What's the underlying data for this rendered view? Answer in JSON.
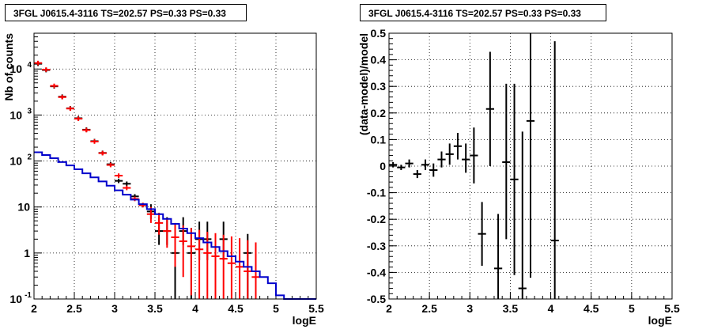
{
  "chart_data": [
    {
      "type": "line",
      "title": "3FGL J0615.4-3116 TS=202.57 PS=0.33 PS=0.33",
      "xlabel": "logE",
      "ylabel": "Nb of counts",
      "xlim": [
        2,
        5.5
      ],
      "ylim": [
        0.1,
        60000
      ],
      "yscale": "log",
      "grid": true,
      "xticks": [
        "2",
        "2.5",
        "3",
        "3.5",
        "4",
        "4.5",
        "5",
        "5.5"
      ],
      "yticks": [
        {
          "value": 0.1,
          "label": "10",
          "exp": "-1"
        },
        {
          "value": 1,
          "label": "1",
          "exp": ""
        },
        {
          "value": 10,
          "label": "10",
          "exp": ""
        },
        {
          "value": 100,
          "label": "10",
          "exp": "2"
        },
        {
          "value": 1000,
          "label": "10",
          "exp": "3"
        },
        {
          "value": 10000,
          "label": "10",
          "exp": "4"
        }
      ],
      "series": [
        {
          "color": "#000000",
          "style": "errorbar",
          "points": [
            {
              "x": 2.05,
              "y": 13000
            },
            {
              "x": 2.15,
              "y": 9500
            },
            {
              "x": 2.25,
              "y": 4200
            },
            {
              "x": 2.35,
              "y": 2500
            },
            {
              "x": 2.45,
              "y": 1400
            },
            {
              "x": 2.55,
              "y": 850
            },
            {
              "x": 2.65,
              "y": 480
            },
            {
              "x": 2.75,
              "y": 270
            },
            {
              "x": 2.85,
              "y": 150
            },
            {
              "x": 2.95,
              "y": 85
            },
            {
              "x": 3.05,
              "y": 37
            },
            {
              "x": 3.15,
              "y": 32
            },
            {
              "x": 3.25,
              "y": 17
            },
            {
              "x": 3.35,
              "y": 11
            },
            {
              "x": 3.45,
              "y": 8,
              "lo": 5.5,
              "hi": 11.5
            },
            {
              "x": 3.55,
              "y": 3,
              "lo": 1.5,
              "hi": 6
            },
            {
              "x": 3.65,
              "y": 3,
              "lo": 1.5,
              "hi": 6
            },
            {
              "x": 3.75,
              "y": 1,
              "lo": 0.1,
              "hi": 3.5
            },
            {
              "x": 3.85,
              "y": 3,
              "lo": 1.5,
              "hi": 6
            },
            {
              "x": 3.95,
              "y": 1,
              "lo": 0.1,
              "hi": 3.5
            },
            {
              "x": 4.05,
              "y": 2,
              "lo": 0.7,
              "hi": 4.8
            },
            {
              "x": 4.15,
              "y": 2,
              "lo": 0.7,
              "hi": 4.8
            },
            {
              "x": 4.35,
              "y": 2,
              "lo": 0.7,
              "hi": 4.8
            },
            {
              "x": 4.65,
              "y": 1,
              "lo": 0.1,
              "hi": 2.6
            }
          ]
        },
        {
          "color": "#ff0000",
          "style": "errorbar",
          "points": [
            {
              "x": 2.05,
              "y": 13500
            },
            {
              "x": 2.15,
              "y": 9700
            },
            {
              "x": 2.25,
              "y": 4300
            },
            {
              "x": 2.35,
              "y": 2450
            },
            {
              "x": 2.45,
              "y": 1380
            },
            {
              "x": 2.55,
              "y": 830
            },
            {
              "x": 2.65,
              "y": 470
            },
            {
              "x": 2.75,
              "y": 265
            },
            {
              "x": 2.85,
              "y": 148
            },
            {
              "x": 2.95,
              "y": 82
            },
            {
              "x": 3.05,
              "y": 48
            },
            {
              "x": 3.15,
              "y": 26
            },
            {
              "x": 3.25,
              "y": 15
            },
            {
              "x": 3.35,
              "y": 11
            },
            {
              "x": 3.45,
              "y": 7,
              "lo": 4.5,
              "hi": 10
            },
            {
              "x": 3.55,
              "y": 4.5,
              "lo": 2.5,
              "hi": 7.5
            },
            {
              "x": 3.65,
              "y": 3,
              "lo": 1.3,
              "hi": 5.5
            },
            {
              "x": 3.75,
              "y": 2.2,
              "lo": 0.5,
              "hi": 4.5
            },
            {
              "x": 3.85,
              "y": 1.8,
              "lo": 0.3,
              "hi": 4
            },
            {
              "x": 3.95,
              "y": 1.4,
              "lo": 0.12,
              "hi": 3.5
            },
            {
              "x": 4.05,
              "y": 1.2,
              "lo": 0.1,
              "hi": 3.2
            },
            {
              "x": 4.15,
              "y": 1,
              "lo": 0.1,
              "hi": 2.9
            },
            {
              "x": 4.25,
              "y": 0.85,
              "lo": 0.1,
              "hi": 2.7
            },
            {
              "x": 4.35,
              "y": 0.75,
              "lo": 0.1,
              "hi": 2.5
            },
            {
              "x": 4.45,
              "y": 0.6,
              "lo": 0.1,
              "hi": 2.3
            },
            {
              "x": 4.55,
              "y": 0.5,
              "lo": 0.1,
              "hi": 2.1
            },
            {
              "x": 4.65,
              "y": 0.4,
              "lo": 0.1,
              "hi": 1.9
            },
            {
              "x": 4.75,
              "y": 0.3,
              "lo": 0.1,
              "hi": 1.7
            }
          ]
        },
        {
          "color": "#0000cc",
          "style": "step",
          "edges": [
            2.0,
            2.1,
            2.2,
            2.3,
            2.4,
            2.5,
            2.6,
            2.7,
            2.8,
            2.9,
            3.0,
            3.1,
            3.2,
            3.3,
            3.4,
            3.5,
            3.6,
            3.7,
            3.8,
            3.9,
            4.0,
            4.1,
            4.2,
            4.3,
            4.4,
            4.5,
            4.6,
            4.7,
            4.8,
            4.9,
            5.0,
            5.1,
            5.5
          ],
          "values": [
            155,
            135,
            115,
            95,
            80,
            66,
            54,
            44,
            36,
            29,
            23,
            18.5,
            14.5,
            11.5,
            9,
            7,
            5.5,
            4.3,
            3.4,
            2.7,
            2.1,
            1.7,
            1.35,
            1.1,
            0.85,
            0.65,
            0.5,
            0.4,
            0.3,
            0.22,
            0.12,
            0.1
          ]
        }
      ]
    },
    {
      "type": "scatter",
      "title": "3FGL J0615.4-3116 TS=202.57 PS=0.33 PS=0.33",
      "xlabel": "logE",
      "ylabel": "(data-model)/model",
      "xlim": [
        2,
        5.5
      ],
      "ylim": [
        -0.5,
        0.5
      ],
      "grid": true,
      "xticks": [
        "2",
        "2.5",
        "3",
        "3.5",
        "4",
        "4.5",
        "5",
        "5.5"
      ],
      "yticks": [
        "-0.5",
        "-0.4",
        "-0.3",
        "-0.2",
        "-0.1",
        "0",
        "0.1",
        "0.2",
        "0.3",
        "0.4",
        "0.5"
      ],
      "series": [
        {
          "color": "#000000",
          "style": "errorbar",
          "points": [
            {
              "x": 2.05,
              "y": 0.005,
              "lo": -0.005,
              "hi": 0.015
            },
            {
              "x": 2.15,
              "y": -0.005,
              "lo": -0.015,
              "hi": 0.005
            },
            {
              "x": 2.25,
              "y": 0.01,
              "lo": -0.005,
              "hi": 0.025
            },
            {
              "x": 2.35,
              "y": -0.03,
              "lo": -0.045,
              "hi": -0.015
            },
            {
              "x": 2.45,
              "y": 0.005,
              "lo": -0.015,
              "hi": 0.025
            },
            {
              "x": 2.55,
              "y": -0.015,
              "lo": -0.04,
              "hi": 0.01
            },
            {
              "x": 2.65,
              "y": 0.025,
              "lo": -0.005,
              "hi": 0.055
            },
            {
              "x": 2.75,
              "y": 0.045,
              "lo": 0.005,
              "hi": 0.085
            },
            {
              "x": 2.85,
              "y": 0.075,
              "lo": 0.025,
              "hi": 0.125
            },
            {
              "x": 2.95,
              "y": 0.025,
              "lo": -0.025,
              "hi": 0.085
            },
            {
              "x": 3.05,
              "y": 0.04,
              "lo": -0.065,
              "hi": 0.145
            },
            {
              "x": 3.15,
              "y": -0.255,
              "lo": -0.375,
              "hi": -0.135
            },
            {
              "x": 3.25,
              "y": 0.215,
              "lo": 0.0,
              "hi": 0.43
            },
            {
              "x": 3.35,
              "y": -0.385,
              "lo": -0.5,
              "hi": -0.18
            },
            {
              "x": 3.45,
              "y": 0.015,
              "lo": -0.275,
              "hi": 0.31
            },
            {
              "x": 3.55,
              "y": -0.05,
              "lo": -0.41,
              "hi": 0.31
            },
            {
              "x": 3.65,
              "y": -0.46,
              "lo": -0.5,
              "hi": 0.13
            },
            {
              "x": 3.75,
              "y": 0.17,
              "lo": -0.42,
              "hi": 0.5
            },
            {
              "x": 4.05,
              "y": -0.28,
              "lo": -0.5,
              "hi": 0.47
            }
          ]
        }
      ]
    }
  ]
}
